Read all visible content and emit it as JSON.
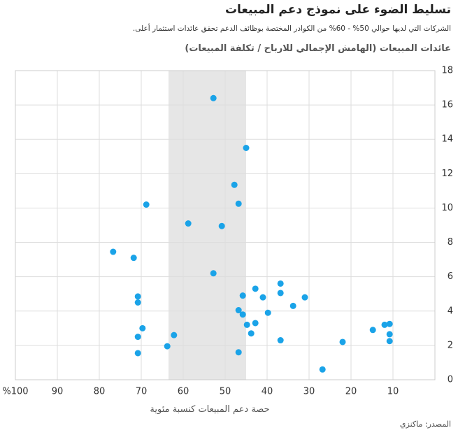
{
  "chart_data": {
    "type": "scatter",
    "title": "تسليط الضوء على نموذج دعم المبيعات",
    "subtitle": "الشركات التي لديها حوالي 50% - 60% من الكوادر المختصة بوظائف الدعم تحقق عائدات استثمار أعلى.",
    "y_label": "عائدات المبيعات (الهامش الإجمالي للارباح / تكلفة المبيعات)",
    "x_label": "حصة دعم المبيعات كنسبة مئوية",
    "source": "المصدر: ماكنزي",
    "color": "#1aa3e8",
    "highlight_band": [
      63.5,
      45
    ],
    "highlight_color": "#e6e6e6",
    "grid": true,
    "xlim": [
      100,
      0
    ],
    "xticks": [
      {
        "value": 100,
        "label": "%100"
      },
      90,
      80,
      70,
      60,
      50,
      40,
      30,
      20,
      10
    ],
    "ylim": [
      0,
      18
    ],
    "yticks": [
      0,
      2,
      4,
      6,
      8,
      10,
      12,
      14,
      16,
      18
    ],
    "x": [
      52.8,
      45,
      47.8,
      68.8,
      46.8,
      58.8,
      50.8,
      76.7,
      71.8,
      52.8,
      36.8,
      42.8,
      45.8,
      36.8,
      41,
      31,
      70.8,
      70.8,
      33.8,
      46.8,
      45.8,
      39.8,
      42.8,
      44.8,
      69.7,
      62.2,
      70.8,
      43.8,
      14.8,
      12,
      10.8,
      10.8,
      10.8,
      36.8,
      22,
      63.8,
      70.8,
      46.8,
      26.8
    ],
    "values": [
      16.4,
      13.5,
      11.35,
      10.2,
      10.25,
      9.1,
      8.95,
      7.45,
      7.1,
      6.2,
      5.6,
      5.3,
      4.9,
      5.05,
      4.8,
      4.8,
      4.85,
      4.5,
      4.3,
      4.05,
      3.8,
      3.9,
      3.3,
      3.2,
      3.0,
      2.6,
      2.5,
      2.7,
      2.9,
      3.2,
      3.25,
      2.65,
      2.25,
      2.3,
      2.2,
      1.95,
      1.55,
      1.6,
      0.6
    ]
  }
}
